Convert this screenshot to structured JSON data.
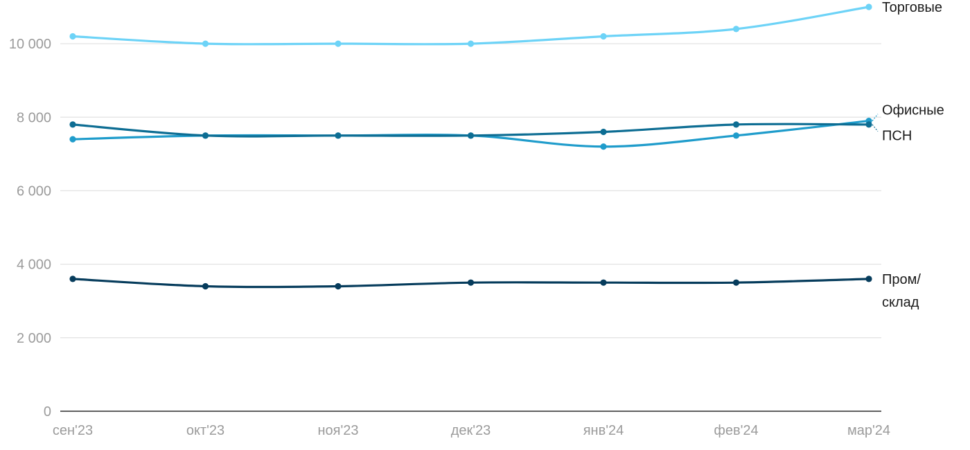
{
  "chart_data": {
    "type": "line",
    "categories": [
      "сен'23",
      "окт'23",
      "ноя'23",
      "дек'23",
      "янв'24",
      "фев'24",
      "мар'24"
    ],
    "ylim": [
      0,
      11000
    ],
    "yticks": [
      {
        "value": 0,
        "label": "0"
      },
      {
        "value": 2000,
        "label": "2 000"
      },
      {
        "value": 4000,
        "label": "4 000"
      },
      {
        "value": 6000,
        "label": "6 000"
      },
      {
        "value": 8000,
        "label": "8 000"
      },
      {
        "value": 10000,
        "label": "10 000"
      }
    ],
    "grid": true,
    "series": [
      {
        "name": "Торговые",
        "color": "#6dd3f7",
        "values": [
          10200,
          10000,
          10000,
          10000,
          10200,
          10400,
          11000
        ]
      },
      {
        "name": "Офисные",
        "color": "#1f9ccb",
        "values": [
          7400,
          7500,
          7500,
          7500,
          7200,
          7500,
          7900
        ]
      },
      {
        "name": "ПСН",
        "color": "#0d6d93",
        "values": [
          7800,
          7500,
          7500,
          7500,
          7600,
          7800,
          7800
        ]
      },
      {
        "name": "Пром/склад",
        "color": "#063c5c",
        "values": [
          3600,
          3400,
          3400,
          3500,
          3500,
          3500,
          3600
        ]
      }
    ],
    "labels": [
      {
        "series": 0,
        "lines": [
          "Торговые"
        ]
      },
      {
        "series": 2,
        "lines": [
          "ПСН"
        ]
      },
      {
        "series": 1,
        "lines": [
          "Офисные"
        ]
      },
      {
        "series": 3,
        "lines": [
          "Пром/",
          "склад"
        ]
      }
    ]
  }
}
